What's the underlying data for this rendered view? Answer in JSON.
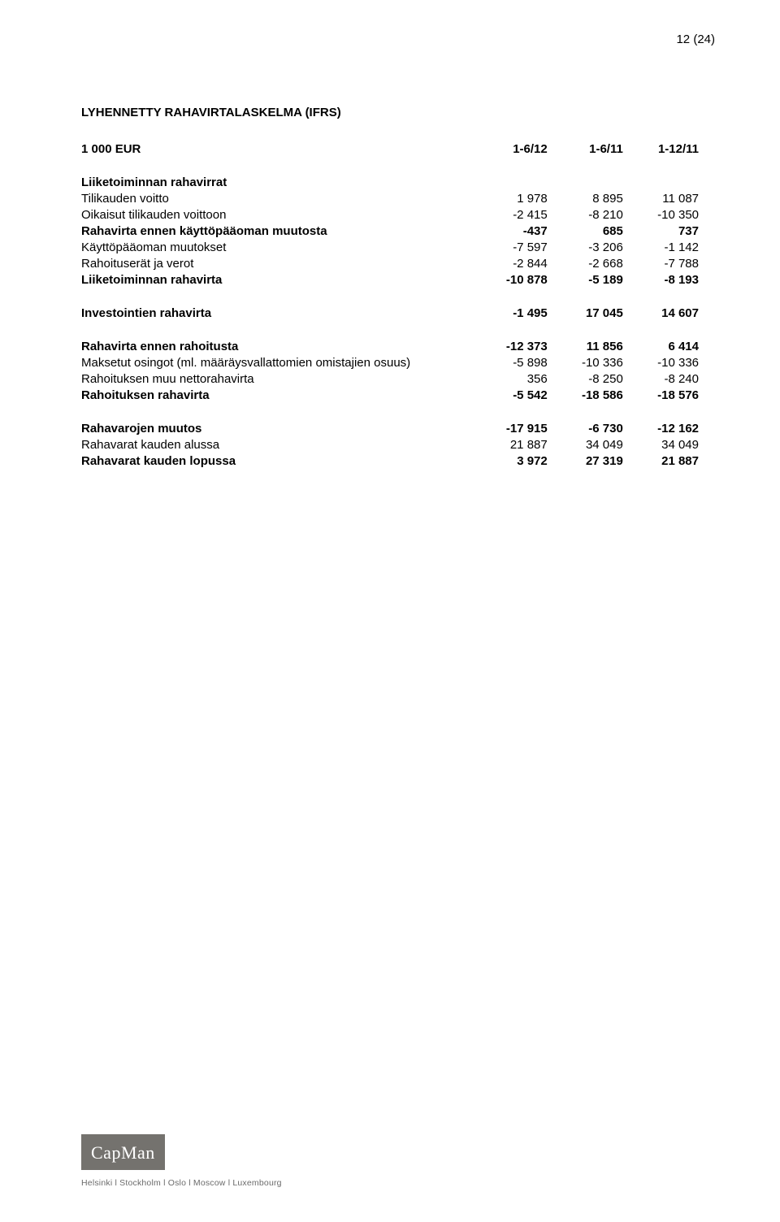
{
  "page_number": "12 (24)",
  "title": "LYHENNETTY RAHAVIRTALASKELMA (IFRS)",
  "header": {
    "c0": "1 000 EUR",
    "c1": "1-6/12",
    "c2": "1-6/11",
    "c3": "1-12/11"
  },
  "s1_head": "Liiketoiminnan rahavirrat",
  "r1": {
    "l": "Tilikauden voitto",
    "a": "1 978",
    "b": "8 895",
    "c": "11 087"
  },
  "r2": {
    "l": "Oikaisut tilikauden voittoon",
    "a": "-2 415",
    "b": "-8 210",
    "c": "-10 350"
  },
  "r3": {
    "l": "Rahavirta ennen käyttöpääoman muutosta",
    "a": "-437",
    "b": "685",
    "c": "737"
  },
  "r4": {
    "l": "Käyttöpääoman muutokset",
    "a": "-7 597",
    "b": "-3 206",
    "c": "-1 142"
  },
  "r5": {
    "l": "Rahoituserät ja verot",
    "a": "-2 844",
    "b": "-2 668",
    "c": "-7 788"
  },
  "r6": {
    "l": "Liiketoiminnan rahavirta",
    "a": "-10 878",
    "b": "-5 189",
    "c": "-8 193"
  },
  "r7": {
    "l": "Investointien rahavirta",
    "a": "-1 495",
    "b": "17 045",
    "c": "14 607"
  },
  "r8": {
    "l": "Rahavirta ennen rahoitusta",
    "a": "-12 373",
    "b": "11 856",
    "c": "6 414"
  },
  "r9": {
    "l": "Maksetut osingot (ml. määräysvallattomien omistajien osuus)",
    "a": "-5 898",
    "b": "-10 336",
    "c": "-10 336"
  },
  "r10": {
    "l": "Rahoituksen muu nettorahavirta",
    "a": "356",
    "b": "-8 250",
    "c": "-8 240"
  },
  "r11": {
    "l": "Rahoituksen rahavirta",
    "a": "-5 542",
    "b": "-18 586",
    "c": "-18 576"
  },
  "r12": {
    "l": "Rahavarojen muutos",
    "a": "-17 915",
    "b": "-6 730",
    "c": "-12 162"
  },
  "r13": {
    "l": "Rahavarat kauden alussa",
    "a": "21 887",
    "b": "34 049",
    "c": "34 049"
  },
  "r14": {
    "l": "Rahavarat kauden lopussa",
    "a": "3 972",
    "b": "27 319",
    "c": "21 887"
  },
  "footer": {
    "logo": "CapMan",
    "cities": "Helsinki  l  Stockholm  l  Oslo  l  Moscow  l  Luxembourg"
  }
}
